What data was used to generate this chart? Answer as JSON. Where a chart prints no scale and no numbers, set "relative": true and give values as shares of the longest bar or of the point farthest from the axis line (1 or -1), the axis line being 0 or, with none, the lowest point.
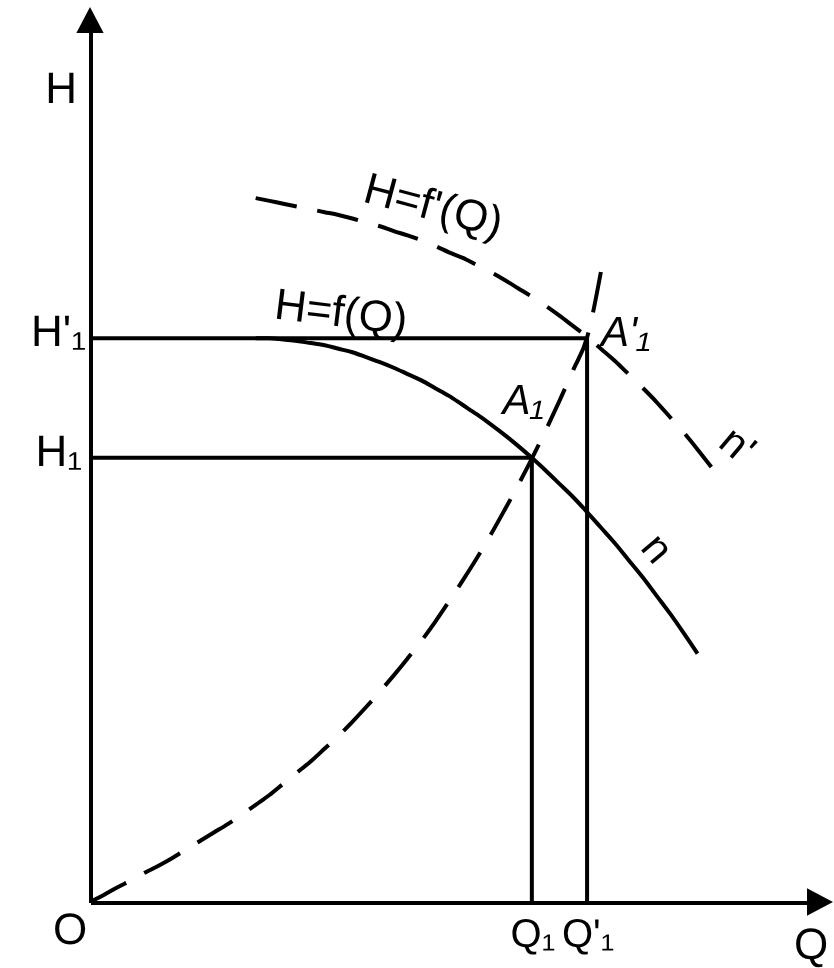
{
  "chart_data": {
    "type": "line",
    "relative": true,
    "xlabel": "Q",
    "ylabel": "H",
    "categories": [
      null,
      null,
      null,
      null,
      null,
      null,
      null,
      null,
      null,
      null,
      null,
      null,
      null,
      null,
      null,
      null,
      null,
      null,
      null,
      null,
      null,
      null,
      null,
      null,
      null,
      null,
      null,
      null,
      null,
      null,
      null,
      null,
      "Q₁",
      null,
      null,
      null,
      "Q'₁",
      null,
      null,
      null,
      null,
      null,
      null,
      null,
      null,
      null,
      null,
      null,
      null,
      null,
      null,
      null,
      null
    ],
    "series": [
      {
        "name": "H=f(Q)",
        "color": "#000000",
        "line_style": "solid",
        "values": [
          null,
          null,
          null,
          null,
          null,
          null,
          null,
          null,
          null,
          null,
          null,
          null,
          0.801,
          0.801,
          0.799,
          0.797,
          0.794,
          0.791,
          0.786,
          0.781,
          0.774,
          0.767,
          0.759,
          0.75,
          0.741,
          0.73,
          0.719,
          0.706,
          0.693,
          0.679,
          0.664,
          0.648,
          0.631,
          0.613,
          0.594,
          0.575,
          0.554,
          0.532,
          0.51,
          0.486,
          0.462,
          0.436,
          0.41,
          0.382,
          0.353,
          null,
          null,
          null,
          null,
          null,
          null,
          null,
          null
        ]
      },
      {
        "name": "H=f'(Q)",
        "color": "#000000",
        "line_style": "dashed",
        "values": [
          null,
          null,
          null,
          null,
          null,
          null,
          null,
          null,
          null,
          null,
          null,
          null,
          1,
          0.996,
          0.992,
          0.988,
          0.984,
          0.98,
          0.976,
          0.971,
          0.965,
          0.96,
          0.953,
          0.947,
          0.94,
          0.932,
          0.923,
          0.915,
          0.905,
          0.895,
          0.884,
          0.872,
          0.86,
          0.847,
          0.833,
          0.818,
          0.803,
          0.786,
          0.769,
          0.75,
          0.731,
          0.711,
          0.689,
          0.667,
          0.643,
          0.618,
          null,
          null,
          null,
          null,
          null,
          null,
          null
        ]
      },
      {
        "color": "#000000",
        "line_style": "dashed",
        "values": [
          0,
          0.01,
          0.021,
          0.031,
          0.042,
          0.052,
          0.063,
          0.075,
          0.087,
          0.099,
          0.111,
          0.124,
          0.138,
          0.152,
          0.168,
          0.184,
          0.2,
          0.218,
          0.236,
          0.256,
          0.277,
          0.299,
          0.322,
          0.346,
          0.371,
          0.398,
          0.427,
          0.457,
          0.488,
          0.521,
          0.556,
          0.592,
          0.63,
          0.67,
          0.712,
          0.756,
          0.802,
          0.895,
          null,
          null,
          null,
          null,
          null,
          null,
          null,
          null,
          null,
          null,
          null,
          null,
          null,
          null,
          null
        ]
      },
      {
        "color": "#000000",
        "line_style": "solid",
        "values": [
          0.631,
          0.631,
          0.631,
          0.631,
          0.631,
          0.631,
          0.631,
          0.631,
          0.631,
          0.631,
          0.631,
          0.631,
          0.631,
          0.631,
          0.631,
          0.631,
          0.631,
          0.631,
          0.631,
          0.631,
          0.631,
          0.631,
          0.631,
          0.631,
          0.631,
          0.631,
          0.631,
          0.631,
          0.631,
          0.631,
          0.631,
          0.631,
          0.631,
          null,
          null,
          null,
          null,
          null,
          null,
          null,
          null,
          null,
          null,
          null,
          null,
          null,
          null,
          null,
          null,
          null,
          null,
          null,
          null
        ]
      },
      {
        "color": "#000000",
        "line_style": "solid",
        "values": [
          0.801,
          0.801,
          0.801,
          0.801,
          0.801,
          0.801,
          0.801,
          0.801,
          0.801,
          0.801,
          0.801,
          0.801,
          0.801,
          0.801,
          0.801,
          0.801,
          0.801,
          0.801,
          0.801,
          0.801,
          0.801,
          0.801,
          0.801,
          0.801,
          0.801,
          0.801,
          0.801,
          0.801,
          0.801,
          0.801,
          0.801,
          0.801,
          0.801,
          0.801,
          0.801,
          0.801,
          0.801,
          null,
          null,
          null,
          null,
          null,
          null,
          null,
          null,
          null,
          null,
          null,
          null,
          null,
          null,
          null,
          null
        ]
      },
      {
        "color": "#000000",
        "line_style": "solid",
        "x": [
          "Q₁",
          "Q₁"
        ],
        "values": [
          0.631,
          0
        ]
      },
      {
        "color": "#000000",
        "line_style": "solid",
        "x": [
          "Q'₁",
          "Q'₁"
        ],
        "values": [
          0.801,
          0
        ]
      }
    ],
    "annotations": [
      "O",
      "H₁",
      "H'₁",
      {
        "text": "A₁",
        "x": "Q₁",
        "y": 0.631
      },
      {
        "text": "A'₁",
        "x": "Q'₁",
        "y": 0.801
      },
      "n",
      "n'"
    ]
  }
}
